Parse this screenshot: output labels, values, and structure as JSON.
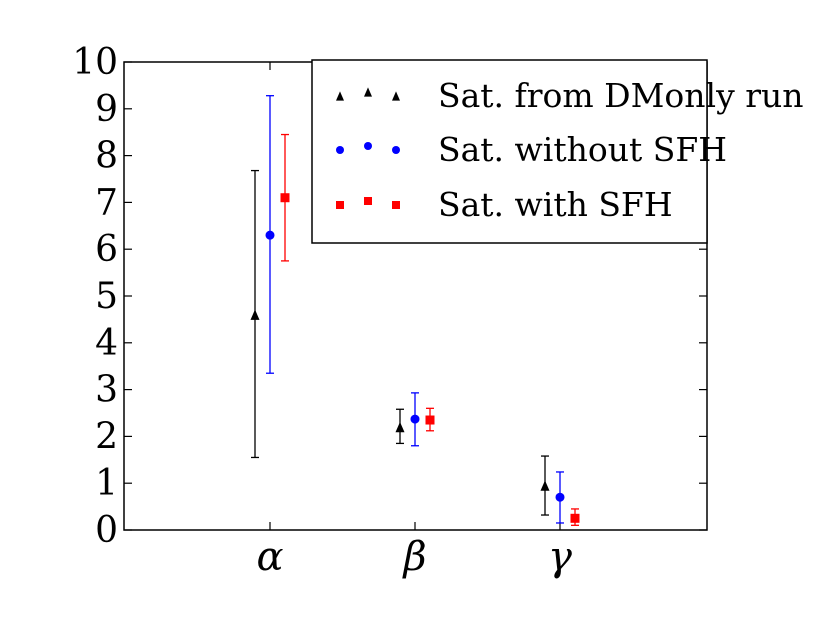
{
  "chart_data": {
    "type": "scatter",
    "title": "",
    "xlabel": "",
    "ylabel": "",
    "ylim": [
      0,
      10
    ],
    "yticks": [
      "0",
      "1",
      "2",
      "3",
      "4",
      "5",
      "6",
      "7",
      "8",
      "9",
      "10"
    ],
    "categories": [
      "α",
      "β",
      "γ"
    ],
    "legend_position": "top-right",
    "series": [
      {
        "name": "Sat. from DMonly run",
        "marker": "triangle",
        "color": "#000000",
        "values": [
          4.6,
          2.2,
          0.95
        ],
        "err_low": [
          1.55,
          1.85,
          0.32
        ],
        "err_high": [
          7.68,
          2.58,
          1.58
        ]
      },
      {
        "name": "Sat. without SFH",
        "marker": "circle",
        "color": "#0000ff",
        "values": [
          6.3,
          2.37,
          0.7
        ],
        "err_low": [
          3.35,
          1.8,
          0.15
        ],
        "err_high": [
          9.28,
          2.93,
          1.24
        ]
      },
      {
        "name": "Sat. with SFH",
        "marker": "square",
        "color": "#ff0000",
        "values": [
          7.1,
          2.35,
          0.25
        ],
        "err_low": [
          5.75,
          2.12,
          0.1
        ],
        "err_high": [
          8.45,
          2.6,
          0.45
        ]
      }
    ]
  }
}
